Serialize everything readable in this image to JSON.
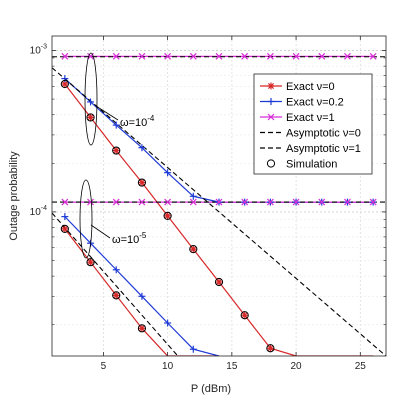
{
  "chart_data": {
    "type": "line",
    "title": "",
    "xlabel": "P (dBm)",
    "ylabel": "Outage probability",
    "x_ticks": [
      5,
      10,
      15,
      20,
      25
    ],
    "y_ticks": [
      "10^-4",
      "10^-3"
    ],
    "xlim": [
      1,
      27
    ],
    "ylim": [
      1.28e-05,
      0.00123
    ],
    "yscale": "log",
    "grid": true,
    "legend_position": "top-right",
    "colors": {
      "exact_v0": "#d62728",
      "exact_v02": "#1f3bd6",
      "exact_v1": "#d62dd6",
      "asymptotic": "#000000",
      "simulation": "#000000"
    },
    "series": [
      {
        "name": "Exact ν=0",
        "group": "ω=10^-4",
        "style": "red-star",
        "x": [
          2,
          4,
          6,
          8,
          10,
          12,
          14,
          16,
          18,
          20,
          22,
          24,
          26
        ],
        "y": [
          0.00062,
          0.000385,
          0.00024,
          0.000152,
          9.45e-05,
          5.88e-05,
          3.68e-05,
          2.29e-05,
          1.43e-05,
          1.28e-05,
          1.28e-05,
          1.28e-05,
          1.28e-05
        ]
      },
      {
        "name": "Exact ν=0.2",
        "group": "ω=10^-4",
        "style": "blue-plus",
        "x": [
          2,
          4,
          6,
          8,
          10,
          12,
          14,
          16,
          18,
          20,
          22,
          24,
          26
        ],
        "y": [
          0.00067,
          0.00048,
          0.000345,
          0.00025,
          0.000175,
          0.000125,
          0.000115,
          0.000115,
          0.000115,
          0.000115,
          0.000115,
          0.000115,
          0.000115
        ]
      },
      {
        "name": "Exact ν=1",
        "group": "ω=10^-4",
        "style": "magenta-x",
        "x": [
          2,
          4,
          6,
          8,
          10,
          12,
          14,
          16,
          18,
          20,
          22,
          24,
          26
        ],
        "y": [
          0.00092,
          0.00092,
          0.00092,
          0.00092,
          0.00092,
          0.00092,
          0.00092,
          0.00092,
          0.00092,
          0.00092,
          0.00092,
          0.00092,
          0.00092
        ]
      },
      {
        "name": "Asymptotic ν=0",
        "style": "black-dash",
        "x": [
          1,
          27
        ],
        "y": [
          0.000782,
          1.28e-05
        ]
      },
      {
        "name": "Asymptotic ν=1",
        "style": "black-dash",
        "x": [
          1,
          27
        ],
        "y": [
          0.000915,
          0.000915
        ]
      },
      {
        "name": "Simulation",
        "style": "black-circle",
        "x": [
          2,
          4,
          6,
          8,
          10,
          12,
          14,
          16,
          18,
          20,
          22,
          24,
          26
        ],
        "y": [
          0.00062,
          0.000385,
          0.00024,
          0.000152,
          9.45e-05,
          5.88e-05,
          3.68e-05,
          2.29e-05,
          1.43e-05,
          1.28e-05,
          1.28e-05,
          1.28e-05,
          1.28e-05
        ]
      },
      {
        "name": "Exact ν=0",
        "group": "ω=10^-5",
        "style": "red-star",
        "x": [
          2,
          4,
          6,
          8,
          10,
          12,
          14
        ],
        "y": [
          7.85e-05,
          4.88e-05,
          3.04e-05,
          1.9e-05,
          1.28e-05,
          1.28e-05,
          1.28e-05
        ]
      },
      {
        "name": "Exact ν=0.2",
        "group": "ω=10^-5",
        "style": "blue-plus",
        "x": [
          2,
          4,
          6,
          8,
          10,
          12,
          14
        ],
        "y": [
          9.35e-05,
          6.4e-05,
          4.38e-05,
          3e-05,
          2.05e-05,
          1.41e-05,
          1.28e-05
        ]
      },
      {
        "name": "Exact ν=1",
        "group": "ω=10^-5",
        "style": "magenta-x",
        "x": [
          2,
          4,
          6,
          8,
          10,
          12,
          14,
          16,
          18,
          20,
          22,
          24,
          26
        ],
        "y": [
          0.000115,
          0.000115,
          0.000115,
          0.000115,
          0.000115,
          0.000115,
          0.000115,
          0.000115,
          0.000115,
          0.000115,
          0.000115,
          0.000115,
          0.000115
        ]
      },
      {
        "name": "Asymptotic ν=0",
        "style": "black-dash",
        "x": [
          1,
          10.8
        ],
        "y": [
          9.85e-05,
          1.28e-05
        ]
      },
      {
        "name": "Asymptotic ν=1",
        "style": "black-dash",
        "x": [
          1,
          27
        ],
        "y": [
          0.000115,
          0.000115
        ]
      },
      {
        "name": "Simulation",
        "style": "black-circle",
        "x": [
          2,
          4,
          6,
          8,
          10,
          12,
          14,
          16,
          18,
          20,
          22,
          24,
          26
        ],
        "y": [
          7.85e-05,
          4.88e-05,
          3.04e-05,
          1.9e-05,
          1.28e-05,
          1.28e-05,
          1.28e-05,
          1.28e-05,
          1.28e-05,
          1.28e-05,
          1.28e-05,
          1.28e-05,
          1.28e-05
        ]
      }
    ],
    "legend": [
      "Exact ν=0",
      "Exact ν=0.2",
      "Exact ν=1",
      "Asymptotic ν=0",
      "Asymptotic ν=1",
      "Simulation"
    ],
    "annotations": [
      {
        "text": "ω=10",
        "sup": "-4"
      },
      {
        "text": "ω=10",
        "sup": "-5"
      }
    ]
  }
}
